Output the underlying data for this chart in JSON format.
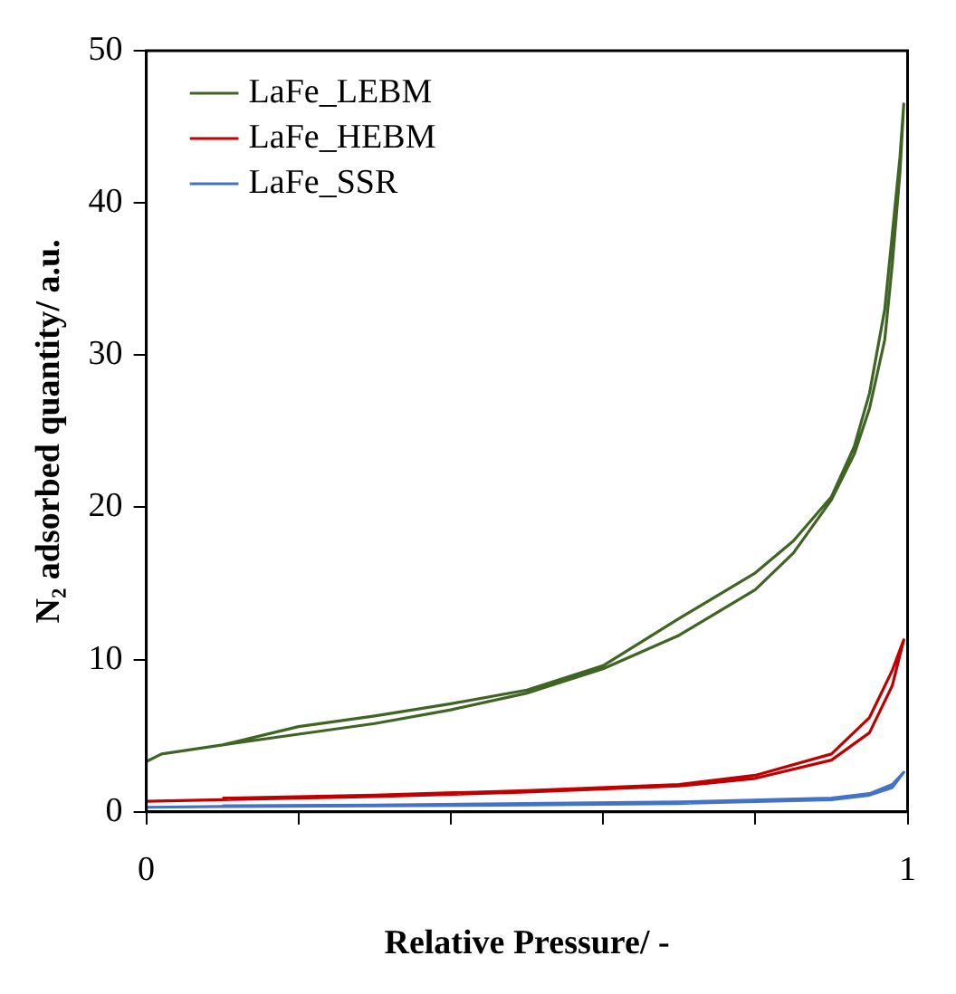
{
  "chart_data": {
    "type": "line",
    "xlabel": "Relative Pressure/ -",
    "ylabel": "N₂ adsorbed quantity/ a.u.",
    "xlim": [
      0,
      1
    ],
    "xticks": [
      0,
      {
        "value": 0.2,
        "label": null
      },
      {
        "value": 0.4,
        "label": null
      },
      {
        "value": 0.6,
        "label": null
      },
      {
        "value": 0.8,
        "label": null
      },
      1
    ],
    "ylim": [
      0,
      50
    ],
    "yticks": [
      0,
      10,
      20,
      30,
      40,
      50
    ],
    "grid": false,
    "legend": "top left",
    "marker": "none",
    "line_style": "solid",
    "series": [
      {
        "name": "LaFe_LEBM",
        "color": "#3f6424",
        "x": [
          0,
          0.02,
          0.1,
          0.2,
          0.3,
          0.4,
          0.5,
          0.6,
          0.7,
          0.8,
          0.85,
          0.9,
          0.93,
          0.95,
          0.97,
          0.98,
          0.99,
          0.995,
          0.99,
          0.98,
          0.97,
          0.95,
          0.93,
          0.9,
          0.85,
          0.8,
          0.7,
          0.6,
          0.5,
          0.4,
          0.3,
          0.2,
          0.1
        ],
        "values": [
          3.3,
          3.8,
          4.4,
          5.1,
          5.8,
          6.7,
          7.8,
          9.4,
          11.6,
          14.6,
          17,
          20.5,
          23.5,
          26.5,
          31,
          36,
          42,
          46.5,
          43,
          38,
          33,
          27.5,
          24,
          20.7,
          17.8,
          15.7,
          12.7,
          9.6,
          8,
          7.1,
          6.3,
          5.6,
          4.4
        ]
      },
      {
        "name": "LaFe_HEBM",
        "color": "#c00000",
        "x": [
          0,
          0.1,
          0.3,
          0.5,
          0.7,
          0.8,
          0.9,
          0.95,
          0.98,
          0.995,
          0.98,
          0.95,
          0.9,
          0.8,
          0.7,
          0.5,
          0.3,
          0.1
        ],
        "values": [
          0.7,
          0.8,
          1,
          1.3,
          1.7,
          2.2,
          3.4,
          5.2,
          8.3,
          11.3,
          9.3,
          6.2,
          3.8,
          2.4,
          1.8,
          1.4,
          1.1,
          0.9
        ]
      },
      {
        "name": "LaFe_SSR",
        "color": "#4472c4",
        "x": [
          0,
          0.1,
          0.3,
          0.5,
          0.7,
          0.9,
          0.95,
          0.98,
          0.995,
          0.98,
          0.95,
          0.9,
          0.7,
          0.5,
          0.3,
          0.1
        ],
        "values": [
          0.3,
          0.35,
          0.4,
          0.45,
          0.55,
          0.8,
          1.1,
          1.6,
          2.6,
          1.8,
          1.2,
          0.9,
          0.65,
          0.55,
          0.45,
          0.4
        ]
      }
    ]
  }
}
